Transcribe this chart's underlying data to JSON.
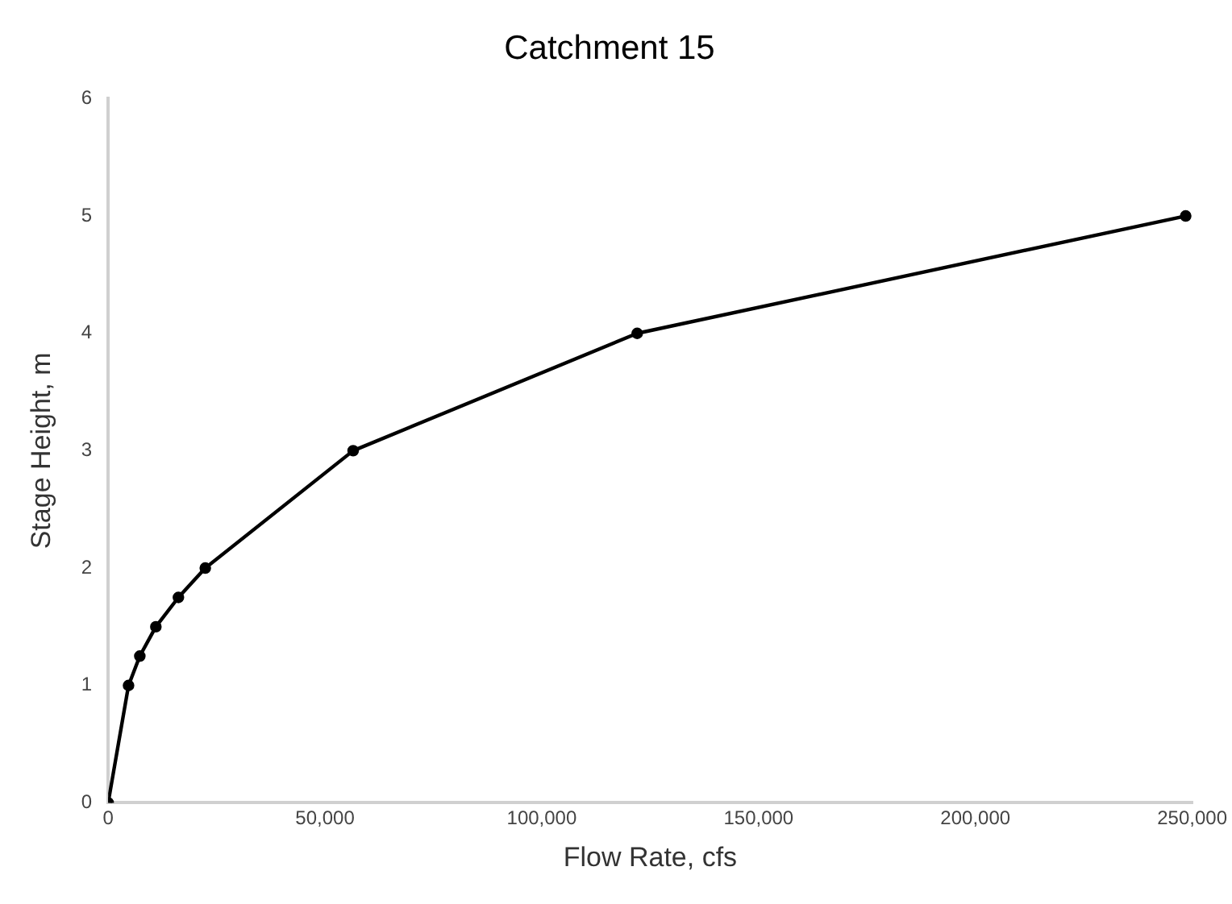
{
  "chart_data": {
    "type": "line",
    "title": "Catchment 15",
    "xlabel": "Flow Rate, cfs",
    "ylabel": "Stage Height, m",
    "x": [
      0,
      4700,
      7300,
      11000,
      16200,
      22400,
      56500,
      122000,
      248500
    ],
    "series": [
      {
        "color": "#000000",
        "values": [
          0,
          1,
          1.25,
          1.5,
          1.75,
          2,
          3,
          4,
          5
        ]
      }
    ],
    "xlim": [
      0,
      250000
    ],
    "xticks": [
      {
        "value": 0,
        "label": "0"
      },
      {
        "value": 50000,
        "label": "50,000"
      },
      {
        "value": 100000,
        "label": "100,000"
      },
      {
        "value": 150000,
        "label": "150,000"
      },
      {
        "value": 200000,
        "label": "200,000"
      },
      {
        "value": 250000,
        "label": "250,000"
      }
    ],
    "ylim": [
      0,
      6
    ],
    "yticks": [
      0,
      1,
      2,
      3,
      4,
      5,
      6
    ],
    "marker": "circle",
    "line_style": "solid",
    "grid": false,
    "legend": false
  }
}
